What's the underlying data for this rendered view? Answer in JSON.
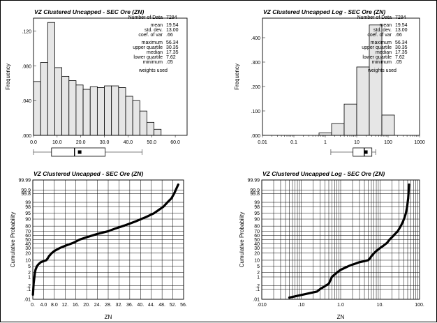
{
  "chart_data": [
    {
      "type": "bar",
      "title": "VZ Clustered Uncapped - SEC Ore (ZN)",
      "ylabel": "Frequency",
      "xlabel": "",
      "x_scale": "linear",
      "xlim": [
        0,
        65
      ],
      "ylim": [
        0,
        0.135
      ],
      "x_ticks": [
        0.0,
        10.0,
        20.0,
        30.0,
        40.0,
        50.0,
        60.0
      ],
      "x_tick_labels": [
        "0.0",
        "10.0",
        "20.0",
        "30.0",
        "40.0",
        "50.0",
        "60.0"
      ],
      "y_ticks": [
        0,
        0.04,
        0.08,
        0.12
      ],
      "y_tick_labels": [
        ".000",
        ".040",
        ".080",
        ".120"
      ],
      "bin_edges": [
        0,
        3,
        6,
        9,
        12,
        15,
        18,
        21,
        24,
        27,
        30,
        33,
        36,
        39,
        42,
        45,
        48,
        51,
        54
      ],
      "values": [
        0.062,
        0.084,
        0.13,
        0.078,
        0.068,
        0.063,
        0.058,
        0.053,
        0.056,
        0.055,
        0.057,
        0.057,
        0.055,
        0.045,
        0.04,
        0.028,
        0.015,
        0.007
      ],
      "boxplot": {
        "whisker_low": 0.0,
        "q1": 7.62,
        "median": 17.35,
        "mean": 19.54,
        "q3": 30.35,
        "whisker_high": 46.0
      }
    },
    {
      "type": "bar",
      "title": "VZ Clustered Uncapped Log - SEC Ore (ZN)",
      "ylabel": "Frequency",
      "xlabel": "",
      "x_scale": "log",
      "xlim": [
        0.01,
        1000
      ],
      "ylim": [
        0,
        0.48
      ],
      "x_ticks": [
        0.01,
        0.1,
        1,
        10,
        100,
        1000
      ],
      "x_tick_labels": [
        "0.01",
        "0.1",
        "1",
        "10",
        "100",
        "1000"
      ],
      "y_ticks": [
        0,
        0.1,
        0.2,
        0.3,
        0.4
      ],
      "y_tick_labels": [
        ".000",
        ".100",
        ".200",
        ".300",
        ".400"
      ],
      "bin_edges": [
        0.631,
        1.585,
        3.981,
        10.0,
        25.12,
        63.1,
        158.5
      ],
      "values": [
        0.01,
        0.048,
        0.128,
        0.28,
        0.452,
        0.083
      ],
      "boxplot": {
        "whisker_low": 1.5,
        "q1": 7.62,
        "median": 17.35,
        "mean": 19.54,
        "q3": 30.35,
        "whisker_high": 40.0
      }
    },
    {
      "type": "scatter",
      "title": "VZ Clustered Uncapped - SEC Ore (ZN)",
      "xlabel": "ZN",
      "ylabel": "Cumulative Probability",
      "x_scale": "linear",
      "y_scale": "probability",
      "xlim": [
        0,
        56
      ],
      "x_ticks": [
        0,
        4,
        8,
        12,
        16,
        20,
        24,
        28,
        32,
        36,
        40,
        44,
        48,
        52,
        56
      ],
      "x_tick_labels": [
        "0.",
        "4.0",
        "8.0",
        "12.",
        "16.",
        "20.",
        "24.",
        "28.",
        "32.",
        "36.",
        "40.",
        "44.",
        "48.",
        "52.",
        "56."
      ],
      "prob_ticks": [
        0.01,
        0.1,
        0.2,
        1,
        2,
        5,
        10,
        20,
        30,
        40,
        50,
        60,
        70,
        80,
        90,
        95,
        98,
        99,
        99.8,
        99.9,
        99.99
      ],
      "prob_tick_labels": [
        ".01",
        ".1",
        ".2",
        "1",
        "2",
        "5",
        "10",
        "20",
        "30",
        "40",
        "50",
        "60",
        "70",
        "80",
        "90",
        "95",
        "98",
        "99",
        "99.8",
        "99.9",
        "99.99"
      ],
      "x": [
        0.05,
        0.3,
        0.6,
        0.8,
        1.0,
        1.3,
        1.6,
        2.0,
        2.5,
        3.0,
        4.0,
        5.0,
        5.5,
        6.0,
        7.0,
        8.0,
        10.0,
        12.0,
        15.0,
        17.35,
        20.0,
        24.0,
        28.0,
        30.35,
        34.0,
        38.0,
        42.0,
        45.0,
        47.0,
        48.5,
        50.0,
        51.5,
        52.5,
        54.0
      ],
      "y": [
        0.03,
        0.3,
        1.0,
        2.0,
        3.0,
        4.0,
        5.0,
        6.0,
        7.0,
        8.0,
        9.0,
        10.0,
        12.0,
        15.0,
        20.0,
        24.0,
        30.0,
        35.0,
        42.0,
        50.0,
        56.0,
        64.0,
        70.0,
        75.0,
        81.0,
        87.0,
        92.0,
        95.0,
        97.0,
        98.0,
        99.0,
        99.5,
        99.8,
        99.97
      ]
    },
    {
      "type": "scatter",
      "title": "VZ Clustered Uncapped Log - SEC Ore (ZN)",
      "xlabel": "ZN",
      "ylabel": "Cumulative Probability",
      "x_scale": "log",
      "y_scale": "probability",
      "xlim": [
        0.01,
        100
      ],
      "x_ticks": [
        0.01,
        0.1,
        1,
        10,
        100
      ],
      "x_tick_labels": [
        ".010",
        ".10",
        "1.0",
        "10.",
        "100."
      ],
      "prob_ticks": [
        0.01,
        0.1,
        0.2,
        1,
        2,
        5,
        10,
        20,
        30,
        40,
        50,
        60,
        70,
        80,
        90,
        95,
        98,
        99,
        99.8,
        99.9,
        99.99
      ],
      "prob_tick_labels": [
        ".01",
        ".1",
        ".2",
        "1",
        "2",
        "5",
        "10",
        "20",
        "30",
        "40",
        "50",
        "60",
        "70",
        "80",
        "90",
        "95",
        "98",
        "99",
        "99.8",
        "99.9",
        "99.99"
      ],
      "x": [
        0.05,
        0.25,
        0.3,
        0.5,
        0.6,
        0.8,
        1.0,
        1.3,
        1.6,
        2.0,
        2.5,
        3.0,
        4.0,
        5.0,
        5.5,
        6.0,
        7.0,
        8.0,
        10.0,
        12.0,
        15.0,
        17.35,
        20.0,
        24.0,
        28.0,
        30.35,
        34.0,
        38.0,
        42.0,
        45.0,
        47.0,
        48.5,
        50.0,
        51.5,
        52.5,
        54.0
      ],
      "y": [
        0.015,
        0.06,
        0.1,
        0.3,
        1.0,
        2.0,
        3.0,
        4.0,
        5.0,
        6.0,
        7.0,
        8.0,
        9.0,
        10.0,
        12.0,
        15.0,
        20.0,
        24.0,
        30.0,
        35.0,
        42.0,
        50.0,
        56.0,
        64.0,
        70.0,
        75.0,
        81.0,
        87.0,
        92.0,
        95.0,
        97.0,
        98.0,
        99.0,
        99.5,
        99.8,
        99.97
      ]
    }
  ],
  "stats": [
    {
      "labels": [
        "Number of Data",
        "mean",
        "std. dev.",
        "coef. of var",
        "maximum",
        "upper quartile",
        "median",
        "lower quartile",
        "minimum",
        "weights used"
      ],
      "values": [
        "7284",
        "19.54",
        "13.00",
        ".66",
        "56.34",
        "30.35",
        "17.35",
        "7.62",
        ".05",
        ""
      ]
    },
    {
      "labels": [
        "Number of Data",
        "mean",
        "std. dev.",
        "coef. of var",
        "maximum",
        "upper quartile",
        "median",
        "lower quartile",
        "minimum",
        "weights used"
      ],
      "values": [
        "7284",
        "19.54",
        "13.00",
        ".66",
        "56.34",
        "30.35",
        "17.35",
        "7.62",
        ".05",
        ""
      ]
    }
  ],
  "colors": {
    "bar_fill": "#e6e6e6",
    "line": "#000000",
    "background": "#ffffff"
  }
}
